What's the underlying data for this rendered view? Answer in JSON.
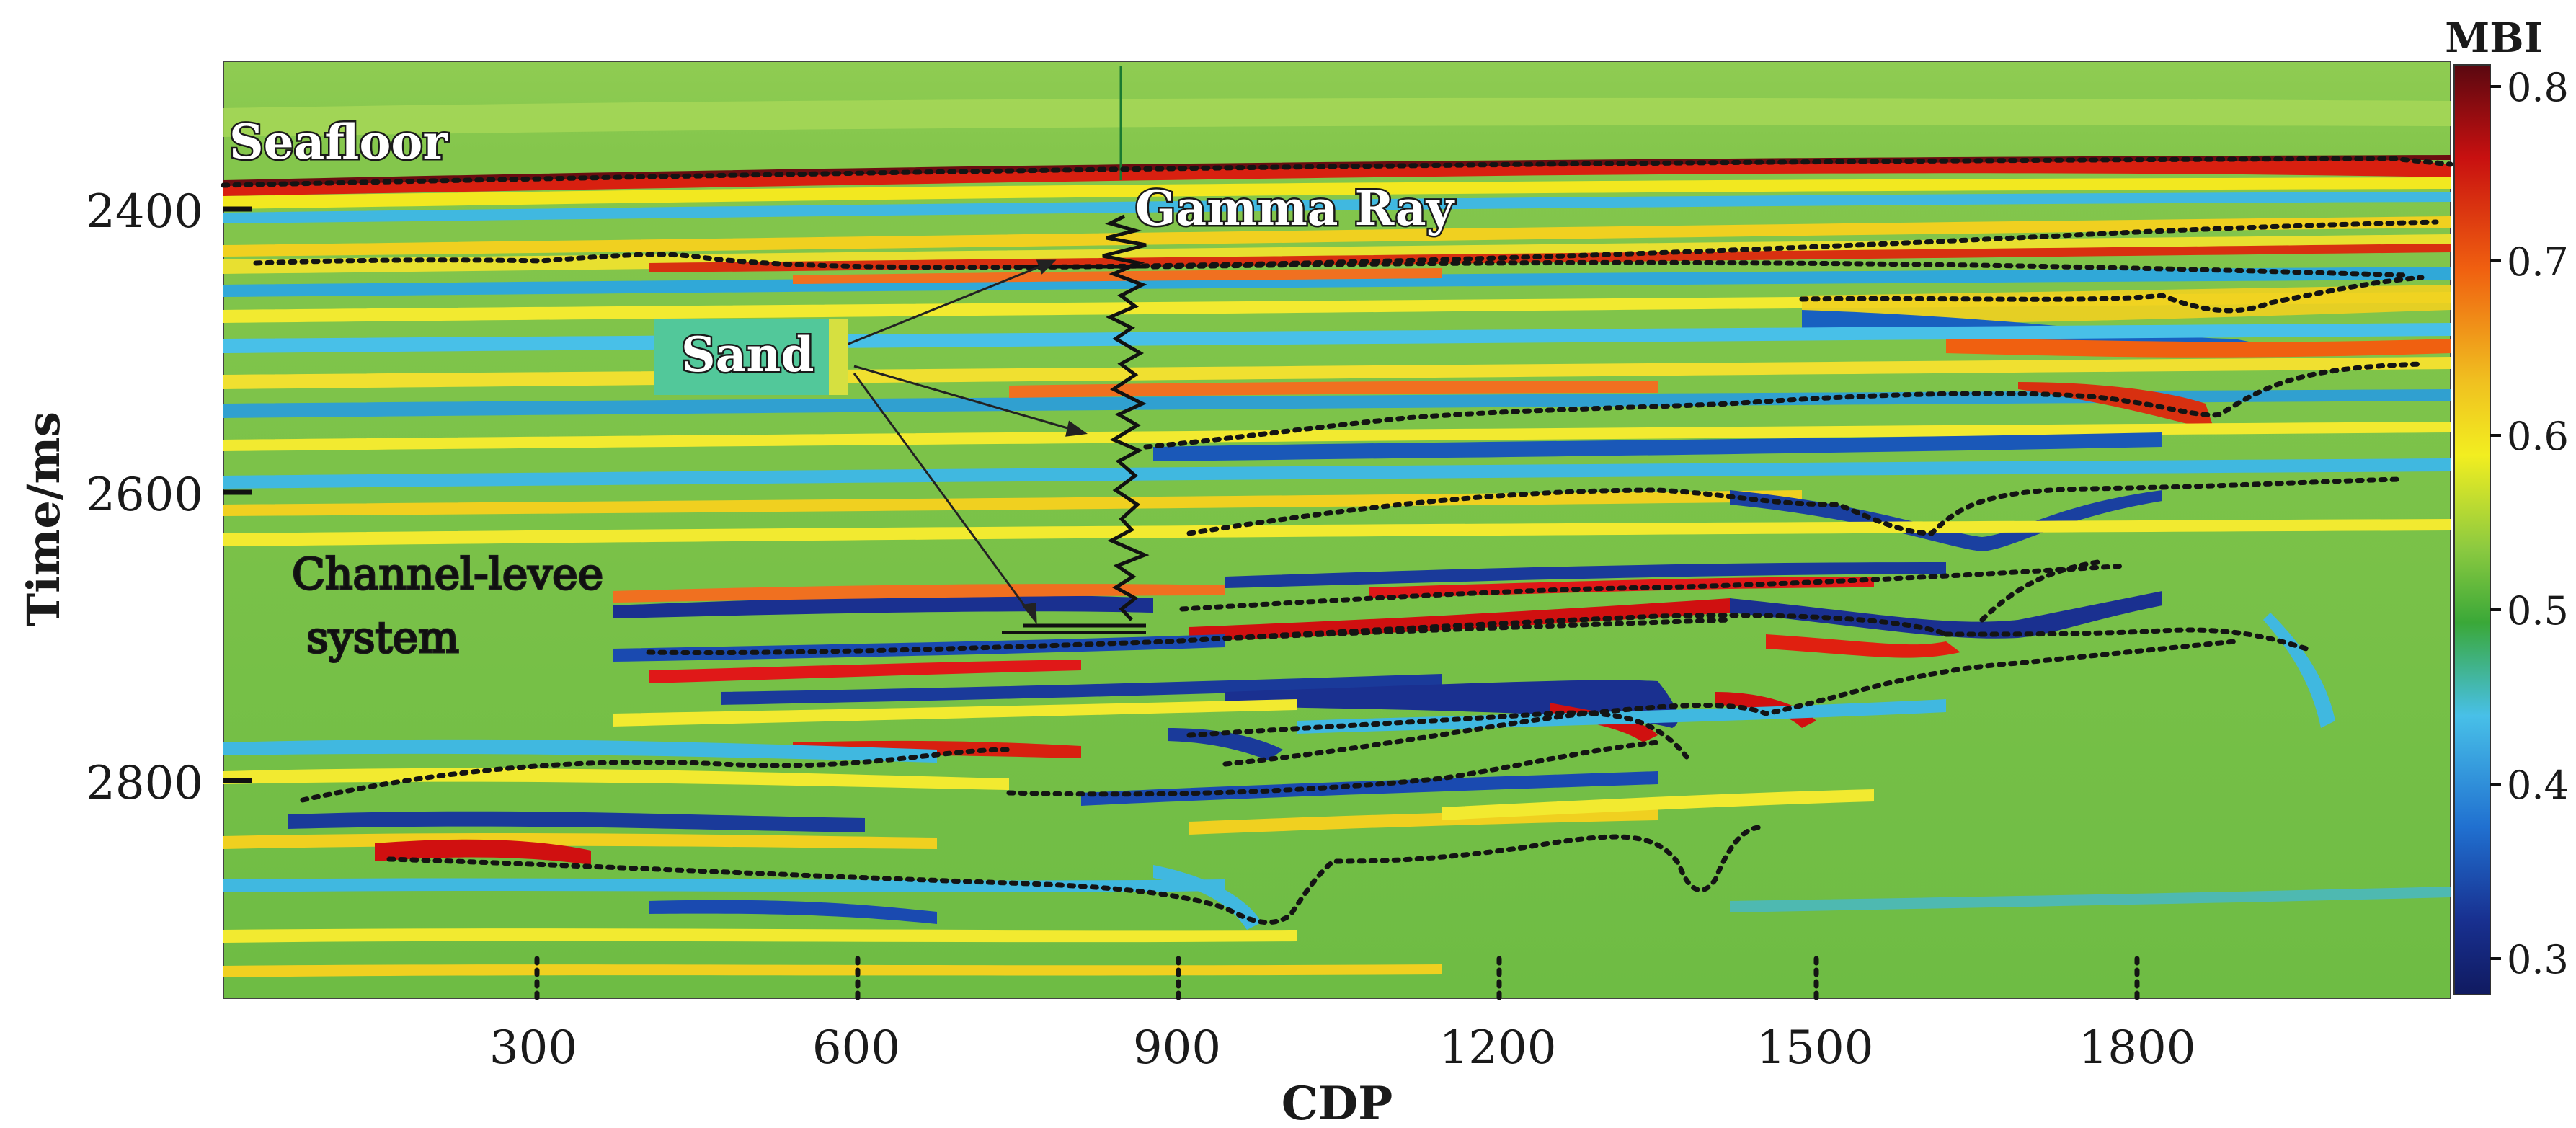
{
  "figure": {
    "x_axis_label": "CDP",
    "y_axis_label": "Time/ms",
    "x_ticks": [
      "300",
      "600",
      "900",
      "1200",
      "1500",
      "1800"
    ],
    "y_ticks": [
      "2400",
      "2600",
      "2800"
    ],
    "colorbar": {
      "title": "MBI",
      "ticks": [
        "0.8",
        "0.7",
        "0.6",
        "0.5",
        "0.4",
        "0.3"
      ],
      "colors": [
        "#6b0a10",
        "#c81010",
        "#f06010",
        "#f0c020",
        "#f4f020",
        "#80c840",
        "#3aa838",
        "#40b0e0",
        "#1858b8",
        "#101a70"
      ]
    },
    "annotations": {
      "seafloor": "Seafloor",
      "gamma_ray": "Gamma Ray",
      "sand": "Sand",
      "channel_levee_line1": "Channel-levee",
      "channel_levee_line2": "system"
    }
  }
}
